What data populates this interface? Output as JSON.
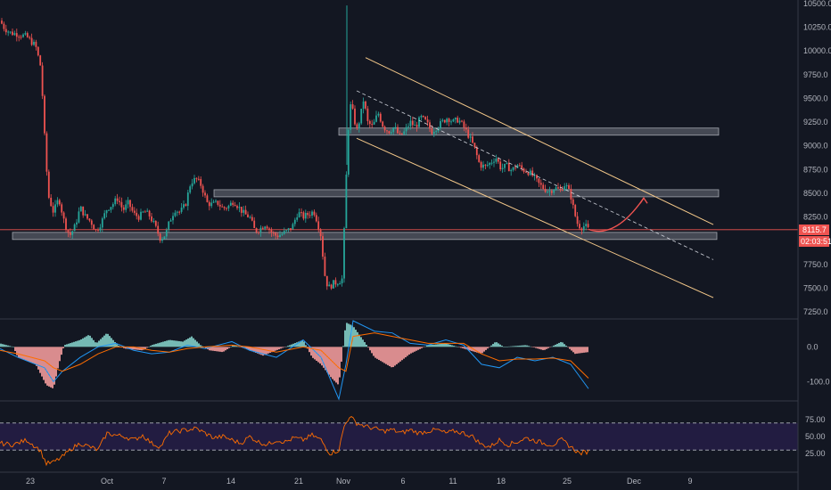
{
  "colors": {
    "background": "#131722",
    "up": "#26a69a",
    "down": "#ef5350",
    "channel": "#f5c98a",
    "zone": "#b2b5be",
    "price_line": "#ef5350",
    "macd": "#2196f3",
    "signal": "#ff6d00",
    "hist_up": "#80cbc4",
    "hist_down": "#ef9a9a",
    "rsi": "#ff6d00",
    "rsi_band": "#2a1f4f",
    "divider": "#363a45"
  },
  "chart_data": [
    {
      "type": "candlestick",
      "title": "",
      "x_ticks": [
        "23",
        "Oct",
        "7",
        "14",
        "21",
        "Nov",
        "6",
        "11",
        "18",
        "25",
        "Dec",
        "9"
      ],
      "y_ticks": [
        "10500.0",
        "10250.0",
        "10000.0",
        "9750.0",
        "9500.0",
        "9250.0",
        "9000.0",
        "8750.0",
        "8500.0",
        "8250.0",
        "8000.0",
        "7750.0",
        "7500.0",
        "7250.0"
      ],
      "ylim": [
        7250,
        10500
      ],
      "close_path": [
        [
          0,
          10320
        ],
        [
          5,
          10240
        ],
        [
          12,
          10190
        ],
        [
          20,
          10180
        ],
        [
          30,
          10150
        ],
        [
          40,
          10050
        ],
        [
          46,
          9820
        ],
        [
          50,
          9100
        ],
        [
          54,
          8480
        ],
        [
          60,
          8300
        ],
        [
          66,
          8450
        ],
        [
          72,
          8200
        ],
        [
          78,
          8050
        ],
        [
          84,
          8150
        ],
        [
          90,
          8350
        ],
        [
          96,
          8250
        ],
        [
          102,
          8200
        ],
        [
          108,
          8100
        ],
        [
          114,
          8200
        ],
        [
          120,
          8340
        ],
        [
          126,
          8380
        ],
        [
          132,
          8450
        ],
        [
          138,
          8320
        ],
        [
          144,
          8400
        ],
        [
          150,
          8280
        ],
        [
          156,
          8250
        ],
        [
          162,
          8310
        ],
        [
          168,
          8260
        ],
        [
          174,
          8150
        ],
        [
          180,
          8020
        ],
        [
          186,
          8070
        ],
        [
          190,
          8200
        ],
        [
          196,
          8330
        ],
        [
          202,
          8300
        ],
        [
          208,
          8380
        ],
        [
          214,
          8620
        ],
        [
          220,
          8650
        ],
        [
          226,
          8580
        ],
        [
          232,
          8400
        ],
        [
          238,
          8380
        ],
        [
          244,
          8400
        ],
        [
          250,
          8340
        ],
        [
          256,
          8360
        ],
        [
          262,
          8420
        ],
        [
          268,
          8350
        ],
        [
          274,
          8280
        ],
        [
          280,
          8250
        ],
        [
          286,
          8100
        ],
        [
          292,
          8130
        ],
        [
          298,
          8180
        ],
        [
          304,
          8090
        ],
        [
          310,
          8050
        ],
        [
          316,
          8070
        ],
        [
          322,
          8100
        ],
        [
          328,
          8150
        ],
        [
          334,
          8300
        ],
        [
          340,
          8250
        ],
        [
          346,
          8280
        ],
        [
          352,
          8310
        ],
        [
          356,
          8200
        ],
        [
          360,
          8050
        ],
        [
          364,
          7650
        ],
        [
          368,
          7500
        ],
        [
          374,
          7550
        ],
        [
          380,
          7570
        ],
        [
          384,
          7600
        ],
        [
          388,
          8600
        ],
        [
          392,
          9450
        ],
        [
          396,
          9350
        ],
        [
          400,
          9150
        ],
        [
          404,
          9300
        ],
        [
          408,
          9500
        ],
        [
          412,
          9250
        ],
        [
          418,
          9200
        ],
        [
          424,
          9350
        ],
        [
          430,
          9200
        ],
        [
          436,
          9150
        ],
        [
          442,
          9200
        ],
        [
          448,
          9100
        ],
        [
          454,
          9150
        ],
        [
          460,
          9250
        ],
        [
          466,
          9200
        ],
        [
          472,
          9300
        ],
        [
          478,
          9250
        ],
        [
          484,
          9150
        ],
        [
          490,
          9200
        ],
        [
          496,
          9250
        ],
        [
          502,
          9300
        ],
        [
          508,
          9250
        ],
        [
          514,
          9280
        ],
        [
          520,
          9200
        ],
        [
          526,
          9100
        ],
        [
          532,
          8980
        ],
        [
          538,
          8800
        ],
        [
          544,
          8780
        ],
        [
          550,
          8820
        ],
        [
          556,
          8880
        ],
        [
          562,
          8760
        ],
        [
          568,
          8790
        ],
        [
          574,
          8740
        ],
        [
          580,
          8800
        ],
        [
          586,
          8750
        ],
        [
          592,
          8730
        ],
        [
          598,
          8680
        ],
        [
          604,
          8600
        ],
        [
          610,
          8550
        ],
        [
          616,
          8520
        ],
        [
          622,
          8560
        ],
        [
          628,
          8530
        ],
        [
          634,
          8600
        ],
        [
          640,
          8480
        ],
        [
          644,
          8300
        ],
        [
          648,
          8170
        ],
        [
          652,
          8140
        ],
        [
          656,
          8160
        ],
        [
          660,
          8115.7
        ]
      ],
      "support_resistance_zones": [
        {
          "price": 9150
        },
        {
          "price": 8500
        },
        {
          "price": 8050
        }
      ],
      "channel": {
        "upper": [
          [
            410,
            9930
          ],
          [
            800,
            8170
          ]
        ],
        "lower": [
          [
            400,
            9080
          ],
          [
            800,
            7400
          ]
        ],
        "mid": [
          [
            400,
            9580
          ],
          [
            800,
            7800
          ]
        ]
      },
      "projection": [
        [
          660,
          8120
        ],
        [
          690,
          8090
        ],
        [
          722,
          8450
        ]
      ],
      "last_price_label": "8115.7",
      "countdown_label": "02:03:51"
    },
    {
      "type": "bar",
      "title": "",
      "y_ticks": [
        "0.0",
        "-100.0"
      ],
      "ylim": [
        -150,
        75
      ],
      "histogram_path": [
        [
          0,
          10
        ],
        [
          15,
          0
        ],
        [
          20,
          -30
        ],
        [
          40,
          -50
        ],
        [
          52,
          -110
        ],
        [
          60,
          -120
        ],
        [
          66,
          -50
        ],
        [
          72,
          5
        ],
        [
          90,
          20
        ],
        [
          100,
          35
        ],
        [
          108,
          10
        ],
        [
          120,
          40
        ],
        [
          132,
          5
        ],
        [
          140,
          -5
        ],
        [
          160,
          -10
        ],
        [
          170,
          5
        ],
        [
          190,
          20
        ],
        [
          205,
          15
        ],
        [
          215,
          30
        ],
        [
          225,
          5
        ],
        [
          235,
          -10
        ],
        [
          250,
          -15
        ],
        [
          262,
          5
        ],
        [
          275,
          -5
        ],
        [
          295,
          -25
        ],
        [
          310,
          -10
        ],
        [
          330,
          10
        ],
        [
          340,
          20
        ],
        [
          350,
          -30
        ],
        [
          360,
          -50
        ],
        [
          372,
          -90
        ],
        [
          380,
          -110
        ],
        [
          388,
          70
        ],
        [
          396,
          60
        ],
        [
          410,
          10
        ],
        [
          420,
          -30
        ],
        [
          440,
          -60
        ],
        [
          460,
          -20
        ],
        [
          480,
          5
        ],
        [
          500,
          10
        ],
        [
          520,
          -5
        ],
        [
          540,
          -20
        ],
        [
          556,
          15
        ],
        [
          565,
          0
        ],
        [
          590,
          5
        ],
        [
          610,
          -10
        ],
        [
          630,
          15
        ],
        [
          645,
          -20
        ],
        [
          660,
          -15
        ]
      ],
      "macd_path": [
        [
          0,
          -5
        ],
        [
          20,
          -30
        ],
        [
          50,
          -60
        ],
        [
          60,
          -100
        ],
        [
          70,
          -70
        ],
        [
          90,
          -30
        ],
        [
          110,
          0
        ],
        [
          130,
          10
        ],
        [
          150,
          -10
        ],
        [
          170,
          -20
        ],
        [
          190,
          -15
        ],
        [
          210,
          5
        ],
        [
          230,
          -5
        ],
        [
          260,
          15
        ],
        [
          280,
          -10
        ],
        [
          310,
          -30
        ],
        [
          340,
          20
        ],
        [
          360,
          -30
        ],
        [
          380,
          -150
        ],
        [
          388,
          -50
        ],
        [
          396,
          75
        ],
        [
          420,
          45
        ],
        [
          440,
          40
        ],
        [
          460,
          10
        ],
        [
          480,
          5
        ],
        [
          500,
          20
        ],
        [
          520,
          5
        ],
        [
          540,
          -50
        ],
        [
          560,
          -60
        ],
        [
          580,
          -30
        ],
        [
          600,
          -40
        ],
        [
          620,
          -30
        ],
        [
          640,
          -50
        ],
        [
          660,
          -120
        ]
      ],
      "signal_path": [
        [
          0,
          -10
        ],
        [
          20,
          -20
        ],
        [
          50,
          -40
        ],
        [
          60,
          -60
        ],
        [
          70,
          -70
        ],
        [
          90,
          -50
        ],
        [
          110,
          -20
        ],
        [
          130,
          0
        ],
        [
          150,
          0
        ],
        [
          170,
          -10
        ],
        [
          190,
          -15
        ],
        [
          210,
          -5
        ],
        [
          230,
          0
        ],
        [
          260,
          5
        ],
        [
          280,
          0
        ],
        [
          310,
          -15
        ],
        [
          340,
          0
        ],
        [
          360,
          -10
        ],
        [
          380,
          -60
        ],
        [
          388,
          -70
        ],
        [
          396,
          30
        ],
        [
          420,
          40
        ],
        [
          440,
          30
        ],
        [
          460,
          20
        ],
        [
          480,
          10
        ],
        [
          500,
          10
        ],
        [
          520,
          10
        ],
        [
          540,
          -20
        ],
        [
          560,
          -40
        ],
        [
          580,
          -35
        ],
        [
          600,
          -35
        ],
        [
          620,
          -32
        ],
        [
          640,
          -40
        ],
        [
          660,
          -90
        ]
      ]
    },
    {
      "type": "line",
      "title": "",
      "y_ticks": [
        "75.00",
        "50.00",
        "25.00"
      ],
      "ylim": [
        0,
        100
      ],
      "bands": [
        70,
        30
      ],
      "rsi_path": [
        [
          0,
          40
        ],
        [
          15,
          38
        ],
        [
          30,
          45
        ],
        [
          45,
          30
        ],
        [
          52,
          10
        ],
        [
          60,
          12
        ],
        [
          70,
          20
        ],
        [
          80,
          32
        ],
        [
          90,
          40
        ],
        [
          100,
          35
        ],
        [
          110,
          30
        ],
        [
          120,
          55
        ],
        [
          130,
          52
        ],
        [
          140,
          50
        ],
        [
          150,
          45
        ],
        [
          160,
          52
        ],
        [
          170,
          40
        ],
        [
          180,
          35
        ],
        [
          190,
          55
        ],
        [
          200,
          58
        ],
        [
          210,
          60
        ],
        [
          220,
          62
        ],
        [
          230,
          55
        ],
        [
          240,
          48
        ],
        [
          250,
          50
        ],
        [
          260,
          45
        ],
        [
          270,
          40
        ],
        [
          280,
          50
        ],
        [
          290,
          42
        ],
        [
          300,
          38
        ],
        [
          310,
          45
        ],
        [
          320,
          42
        ],
        [
          330,
          48
        ],
        [
          340,
          45
        ],
        [
          350,
          52
        ],
        [
          360,
          45
        ],
        [
          370,
          25
        ],
        [
          380,
          30
        ],
        [
          386,
          65
        ],
        [
          392,
          80
        ],
        [
          400,
          70
        ],
        [
          410,
          65
        ],
        [
          420,
          62
        ],
        [
          430,
          58
        ],
        [
          440,
          60
        ],
        [
          450,
          55
        ],
        [
          460,
          60
        ],
        [
          470,
          55
        ],
        [
          480,
          58
        ],
        [
          490,
          60
        ],
        [
          500,
          55
        ],
        [
          510,
          58
        ],
        [
          520,
          55
        ],
        [
          530,
          50
        ],
        [
          540,
          38
        ],
        [
          550,
          35
        ],
        [
          560,
          45
        ],
        [
          570,
          38
        ],
        [
          580,
          42
        ],
        [
          590,
          48
        ],
        [
          600,
          44
        ],
        [
          610,
          40
        ],
        [
          620,
          38
        ],
        [
          630,
          45
        ],
        [
          640,
          35
        ],
        [
          650,
          25
        ],
        [
          660,
          28
        ]
      ]
    }
  ]
}
